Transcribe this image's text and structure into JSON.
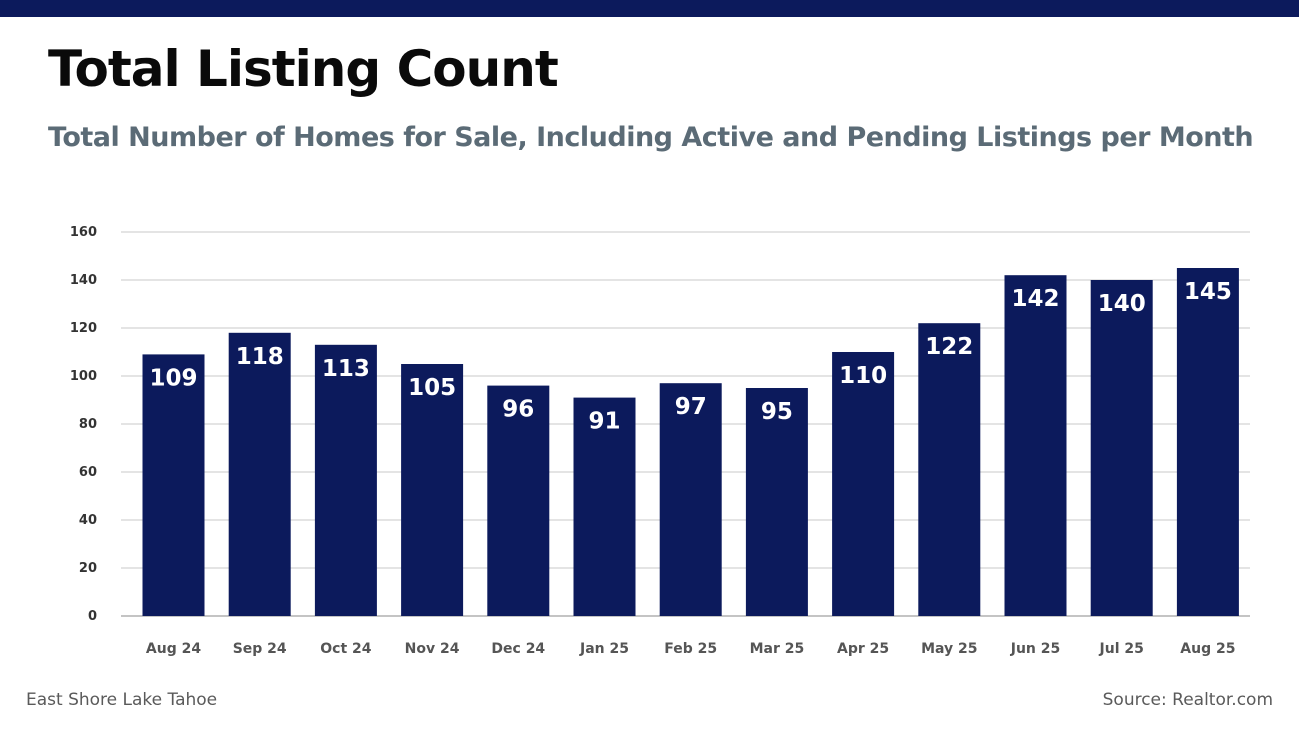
{
  "header": {
    "title": "Total Listing Count",
    "subtitle": "Total Number of Homes for Sale, Including Active and Pending Listings per Month"
  },
  "footer": {
    "left": "East Shore Lake Tahoe",
    "right": "Source: Realtor.com"
  },
  "colors": {
    "brand": "#0c1a5c",
    "subtitle": "#5b6b76",
    "grid": "#c8c8c8",
    "tick": "#333333",
    "xtick": "#555555"
  },
  "chart_data": {
    "type": "bar",
    "title": "Total Listing Count",
    "subtitle": "Total Number of Homes for Sale, Including Active and Pending Listings per Month",
    "categories": [
      "Aug 24",
      "Sep 24",
      "Oct 24",
      "Nov 24",
      "Dec 24",
      "Jan 25",
      "Feb 25",
      "Mar 25",
      "Apr 25",
      "May 25",
      "Jun 25",
      "Jul 25",
      "Aug 25"
    ],
    "values": [
      109,
      118,
      113,
      105,
      96,
      91,
      97,
      95,
      110,
      122,
      142,
      140,
      145
    ],
    "ylim": [
      0,
      160
    ],
    "yticks": [
      0,
      20,
      40,
      60,
      80,
      100,
      120,
      140,
      160
    ],
    "xlabel": "",
    "ylabel": "",
    "grid": true,
    "legend": "none",
    "data_labels": true
  }
}
